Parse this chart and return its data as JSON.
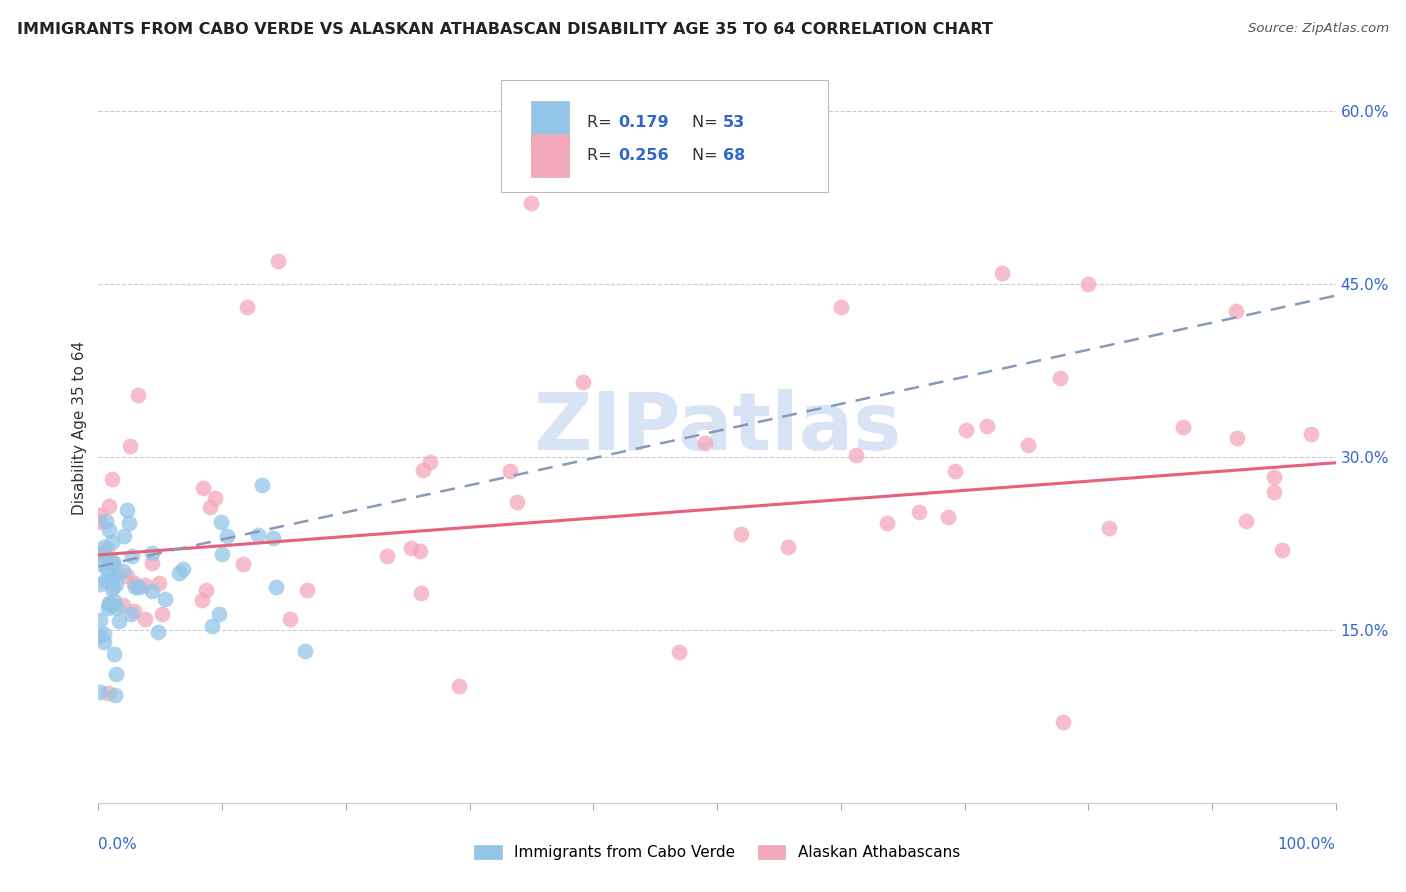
{
  "title": "IMMIGRANTS FROM CABO VERDE VS ALASKAN ATHABASCAN DISABILITY AGE 35 TO 64 CORRELATION CHART",
  "source": "Source: ZipAtlas.com",
  "ylabel": "Disability Age 35 to 64",
  "xlim": [
    0.0,
    1.0
  ],
  "ylim": [
    0.0,
    0.65
  ],
  "ytick_labels": [
    "15.0%",
    "30.0%",
    "45.0%",
    "60.0%"
  ],
  "yticks": [
    0.15,
    0.3,
    0.45,
    0.6
  ],
  "cabo_verde_R": 0.179,
  "cabo_verde_N": 53,
  "athabascan_R": 0.256,
  "athabascan_N": 68,
  "cabo_verde_color": "#92C5E8",
  "athabascan_color": "#F4A8BC",
  "cabo_verde_line_color": "#3060BB",
  "athabascan_line_color": "#E8607A",
  "watermark": "ZIPatlas",
  "watermark_color": "#B8CCEE",
  "background_color": "#FFFFFF",
  "grid_color": "#CCCCCC",
  "title_color": "#222222",
  "source_color": "#555555",
  "ytick_color": "#3366CC",
  "xtick_color": "#3366CC"
}
